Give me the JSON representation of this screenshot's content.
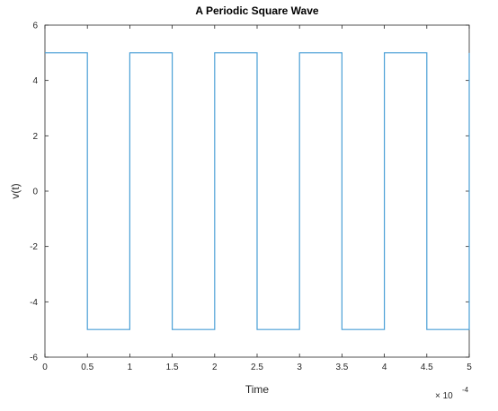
{
  "chart_data": {
    "type": "line",
    "title": "A Periodic Square Wave",
    "xlabel": "Time",
    "ylabel": "v(t)",
    "x_exponent_multiplier": "× 10",
    "x_exponent_power": "-4",
    "xlim": [
      0,
      5
    ],
    "ylim": [
      -6,
      6
    ],
    "x_ticks": [
      0,
      0.5,
      1,
      1.5,
      2,
      2.5,
      3,
      3.5,
      4,
      4.5,
      5
    ],
    "x_tick_labels": [
      "0",
      "0.5",
      "1",
      "1.5",
      "2",
      "2.5",
      "3",
      "3.5",
      "4",
      "4.5",
      "5"
    ],
    "y_ticks": [
      -6,
      -4,
      -2,
      0,
      2,
      4,
      6
    ],
    "y_tick_labels": [
      "-6",
      "-4",
      "-2",
      "0",
      "2",
      "4",
      "6"
    ],
    "grid": false,
    "series": [
      {
        "color": "#4a9fd6",
        "x": [
          0,
          0.5,
          0.5,
          1,
          1,
          1.5,
          1.5,
          2,
          2,
          2.5,
          2.5,
          3,
          3,
          3.5,
          3.5,
          4,
          4,
          4.5,
          4.5,
          5,
          5
        ],
        "y": [
          5,
          5,
          -5,
          -5,
          5,
          5,
          -5,
          -5,
          5,
          5,
          -5,
          -5,
          5,
          5,
          -5,
          -5,
          5,
          5,
          -5,
          -5,
          5
        ]
      }
    ]
  }
}
